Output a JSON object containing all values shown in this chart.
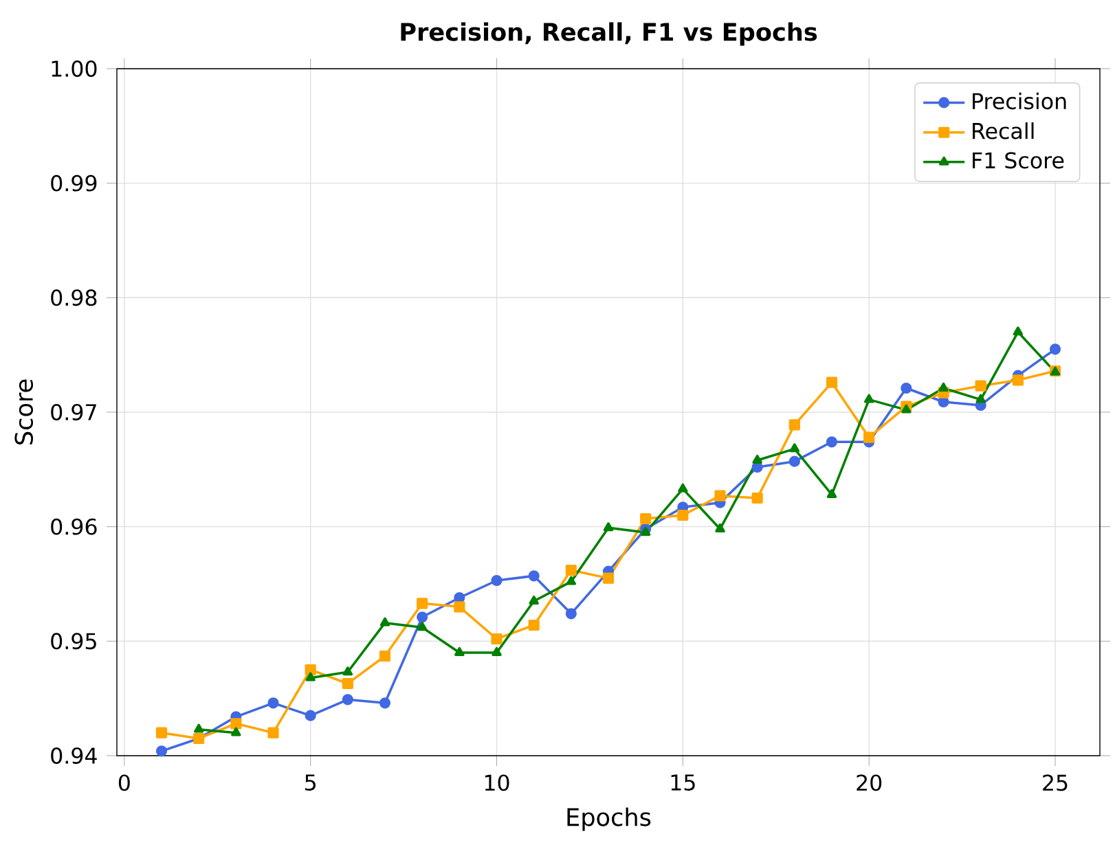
{
  "chart_data": {
    "type": "line",
    "title": "Precision, Recall, F1 vs Epochs",
    "xlabel": "Epochs",
    "ylabel": "Score",
    "x": [
      1,
      2,
      3,
      4,
      5,
      6,
      7,
      8,
      9,
      10,
      11,
      12,
      13,
      14,
      15,
      16,
      17,
      18,
      19,
      20,
      21,
      22,
      23,
      24,
      25
    ],
    "series": [
      {
        "name": "Precision",
        "color": "#4169e1",
        "marker": "circle",
        "values": [
          0.9404,
          0.9415,
          0.9434,
          0.9446,
          0.9435,
          0.9449,
          0.9446,
          0.9521,
          0.9538,
          0.9553,
          0.9557,
          0.9524,
          0.9561,
          0.9598,
          0.9617,
          0.9621,
          0.9652,
          0.9657,
          0.9674,
          0.9674,
          0.9721,
          0.9709,
          0.9706,
          0.9732,
          0.9755
        ]
      },
      {
        "name": "Recall",
        "color": "#ffa500",
        "marker": "square",
        "values": [
          0.942,
          0.9415,
          0.9428,
          0.942,
          0.9475,
          0.9463,
          0.9487,
          0.9533,
          0.953,
          0.9502,
          0.9514,
          0.9562,
          0.9555,
          0.9607,
          0.961,
          0.9627,
          0.9625,
          0.9689,
          0.9726,
          0.9678,
          0.9705,
          0.9717,
          0.9723,
          0.9728,
          0.9736
        ]
      },
      {
        "name": "F1 Score",
        "color": "#008000",
        "marker": "triangle",
        "values": [
          null,
          0.9423,
          0.942,
          null,
          0.9468,
          0.9473,
          0.9516,
          0.9512,
          0.949,
          0.949,
          0.9535,
          0.9552,
          0.9599,
          0.9595,
          0.9633,
          0.9598,
          0.9658,
          0.9668,
          0.9628,
          0.9711,
          0.9702,
          0.9721,
          0.9711,
          0.977,
          0.9735
        ]
      }
    ],
    "xlim": [
      -0.2,
      26.2
    ],
    "ylim": [
      0.94,
      1.0
    ],
    "xticks": [
      0,
      5,
      10,
      15,
      20,
      25
    ],
    "yticks": [
      {
        "value": 0.94,
        "label": "0.94"
      },
      {
        "value": 0.95,
        "label": "0.95"
      },
      {
        "value": 0.96,
        "label": "0.96"
      },
      {
        "value": 0.97,
        "label": "0.97"
      },
      {
        "value": 0.98,
        "label": "0.98"
      },
      {
        "value": 0.99,
        "label": "0.99"
      },
      {
        "value": 1.0,
        "label": "1.00"
      }
    ],
    "grid": true,
    "legend": "top right",
    "line_style": "solid"
  }
}
